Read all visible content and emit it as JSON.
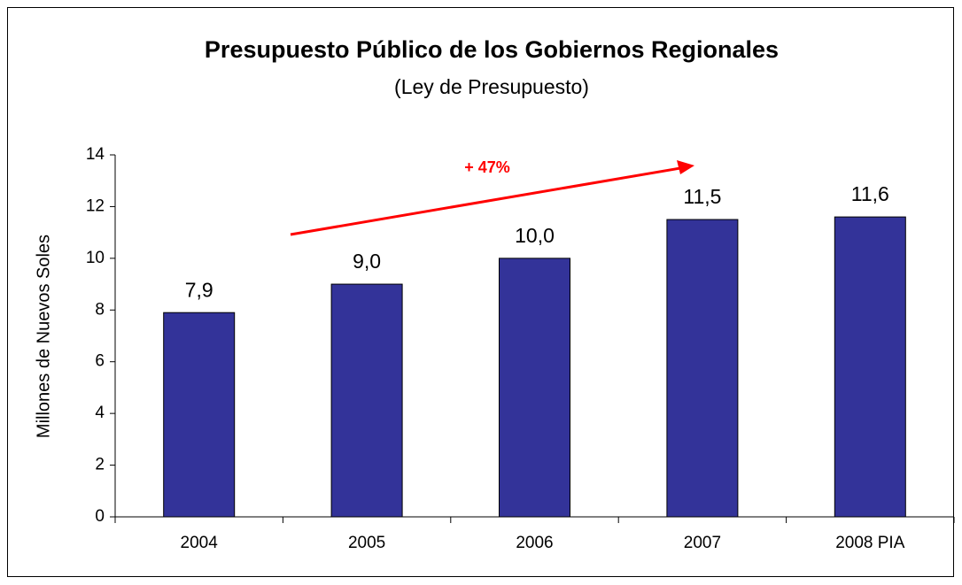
{
  "chart_data": {
    "type": "bar",
    "title": "Presupuesto Público de los Gobiernos Regionales",
    "subtitle": "(Ley de Presupuesto)",
    "y_axis_label": "Millones de Nuevos Soles",
    "annotation": "+ 47%",
    "categories": [
      "2004",
      "2005",
      "2006",
      "2007",
      "2008 PIA"
    ],
    "values": [
      7.9,
      9.0,
      10.0,
      11.5,
      11.6
    ],
    "value_labels": [
      "7,9",
      "9,0",
      "10,0",
      "11,5",
      "11,6"
    ],
    "color": "#333399",
    "ylim": [
      0,
      14
    ],
    "yticks": [
      0,
      2,
      4,
      6,
      8,
      10,
      12,
      14
    ],
    "grid": false
  }
}
